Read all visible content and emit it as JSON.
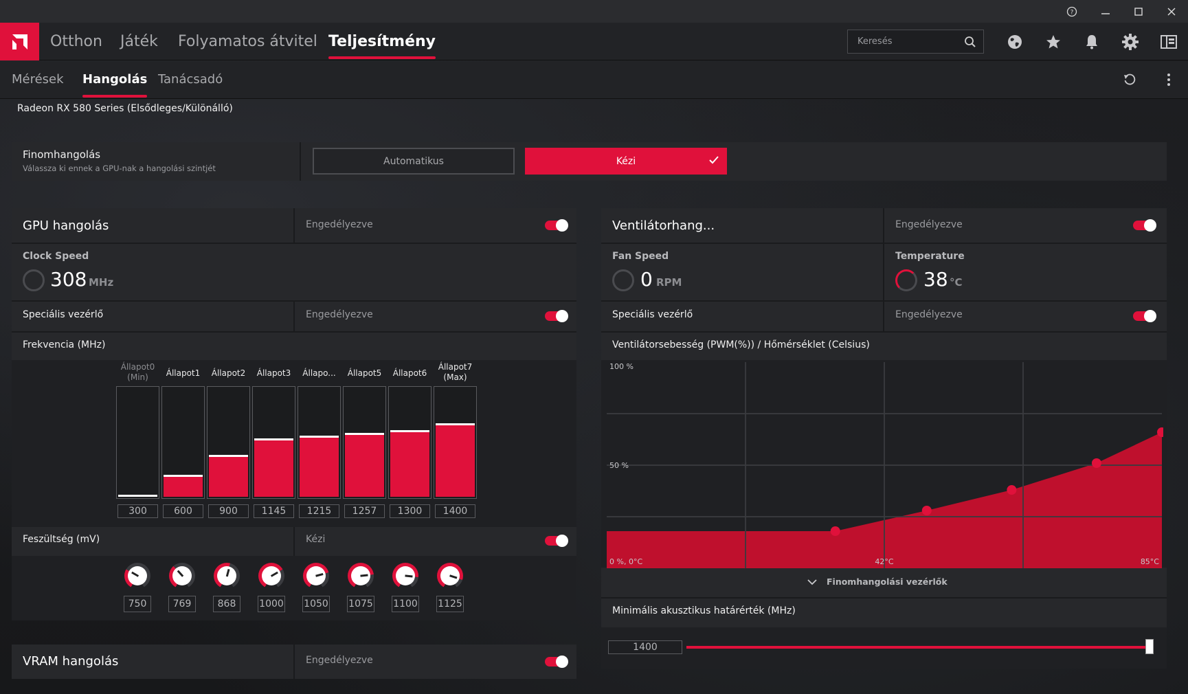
{
  "window": {
    "help_icon": "?",
    "minimize": "—",
    "maximize": "☐",
    "close": "✕"
  },
  "nav": {
    "tabs": [
      {
        "label": "Otthon"
      },
      {
        "label": "Játék"
      },
      {
        "label": "Folyamatos átvitel"
      },
      {
        "label": "Teljesítmény"
      }
    ],
    "active_tab": "Teljesítmény",
    "search_placeholder": "Keresés"
  },
  "subnav": {
    "tabs": [
      {
        "label": "Mérések"
      },
      {
        "label": "Hangolás"
      },
      {
        "label": "Tanácsadó"
      }
    ],
    "active_tab": "Hangolás"
  },
  "gpu_name": "Radeon RX 580 Series (Elsődleges/Különálló)",
  "fine_tuning": {
    "title": "Finomhangolás",
    "subtitle": "Válassza ki ennek a GPU-nak a hangolási szintjét",
    "auto_label": "Automatikus",
    "manual_label": "Kézi",
    "selected": "Kézi"
  },
  "gpu_tuning": {
    "title": "GPU hangolás",
    "status": "Engedélyezve",
    "enabled": true,
    "clock_label": "Clock Speed",
    "clock_value": "308",
    "clock_unit": "MHz",
    "advanced_label": "Speciális vezérlő",
    "advanced_status": "Engedélyezve",
    "freq_label": "Frekvencia (MHz)",
    "states": [
      {
        "label": "Állapot0 (Min)",
        "value": "300",
        "level": 0.0
      },
      {
        "label": "Állapot1",
        "value": "600",
        "level": 0.18
      },
      {
        "label": "Állapot2",
        "value": "900",
        "level": 0.36
      },
      {
        "label": "Állapot3",
        "value": "1145",
        "level": 0.51
      },
      {
        "label": "Állapo...",
        "value": "1215",
        "level": 0.54
      },
      {
        "label": "Állapot5",
        "value": "1257",
        "level": 0.56
      },
      {
        "label": "Állapot6",
        "value": "1300",
        "level": 0.59
      },
      {
        "label": "Állapot7 (Max)",
        "value": "1400",
        "level": 0.65
      }
    ],
    "voltage_label": "Feszültség (mV)",
    "voltage_mode": "Kézi",
    "voltages": [
      {
        "value": "750",
        "level": 0.3
      },
      {
        "value": "769",
        "level": 0.36
      },
      {
        "value": "868",
        "level": 0.55
      },
      {
        "value": "1000",
        "level": 0.7
      },
      {
        "value": "1050",
        "level": 0.75
      },
      {
        "value": "1075",
        "level": 0.78
      },
      {
        "value": "1100",
        "level": 0.82
      },
      {
        "value": "1125",
        "level": 0.86
      }
    ]
  },
  "vram_tuning": {
    "title": "VRAM hangolás",
    "status": "Engedélyezve"
  },
  "fan_tuning": {
    "title": "Ventilátorhang...",
    "status": "Engedélyezve",
    "fan_speed_label": "Fan Speed",
    "fan_speed_value": "0",
    "fan_speed_unit": "RPM",
    "temp_label": "Temperature",
    "temp_value": "38",
    "temp_unit": "°C",
    "advanced_label": "Speciális vezérlő",
    "advanced_status": "Engedélyezve",
    "chart_title": "Ventilátorsebesség (PWM(%)) / Hőmérséklet (Celsius)",
    "expand_label": "Finomhangolási vezérlők",
    "acoustic_label": "Minimális akusztikus határérték (MHz)",
    "acoustic_value": "1400",
    "acoustic_level": 1.0
  },
  "chart_data": {
    "type": "area",
    "x": [
      0,
      35,
      49,
      62,
      75,
      85
    ],
    "values": [
      18,
      18,
      28,
      38,
      51,
      66
    ],
    "xlim": [
      0,
      85
    ],
    "ylim": [
      0,
      100
    ],
    "y_ticks": [
      "100 %",
      "50 %"
    ],
    "x_ticks": [
      "0 %, 0°C",
      "42°C",
      "85°C"
    ],
    "colors": {
      "fill": "#c8102e",
      "points": "#e0113b",
      "grid": "#3a3b3f"
    }
  },
  "colors": {
    "accent": "#e0113b",
    "panel": "#27282b"
  }
}
